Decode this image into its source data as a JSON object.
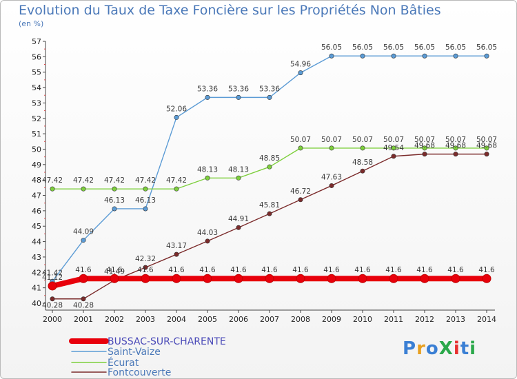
{
  "chart_data": {
    "type": "line",
    "title": "Evolution du Taux de Taxe Foncière sur les Propriétés Non Bâties",
    "ylabel": "(en %)",
    "xlabel": "",
    "x": [
      "2000",
      "2001",
      "2002",
      "2003",
      "2004",
      "2005",
      "2006",
      "2007",
      "2008",
      "2009",
      "2010",
      "2011",
      "2012",
      "2013",
      "2014"
    ],
    "ylim": [
      40,
      57
    ],
    "yticks": [
      40,
      41,
      42,
      43,
      44,
      45,
      46,
      47,
      48,
      49,
      50,
      51,
      52,
      53,
      54,
      55,
      56,
      57
    ],
    "grid": false,
    "series": [
      {
        "name": "BUSSAC-SUR-CHARENTE",
        "color": "#e8000b",
        "values": [
          41.12,
          41.6,
          41.6,
          41.6,
          41.6,
          41.6,
          41.6,
          41.6,
          41.6,
          41.6,
          41.6,
          41.6,
          41.6,
          41.6,
          41.6
        ],
        "labels": [
          "41.12",
          "41.6",
          "41.6",
          "41.6",
          "41.6",
          "41.6",
          "41.6",
          "41.6",
          "41.6",
          "41.6",
          "41.6",
          "41.6",
          "41.6",
          "41.6",
          "41.6"
        ]
      },
      {
        "name": "Saint-Vaize",
        "color": "#5b9bd5",
        "values": [
          41.42,
          44.09,
          46.13,
          46.13,
          52.06,
          53.36,
          53.36,
          53.36,
          54.96,
          56.05,
          56.05,
          56.05,
          56.05,
          56.05,
          56.05
        ],
        "labels": [
          "41.42",
          "44.09",
          "46.13",
          "46.13",
          "52.06",
          "53.36",
          "53.36",
          "53.36",
          "54.96",
          "56.05",
          "56.05",
          "56.05",
          "56.05",
          "56.05",
          "56.05"
        ]
      },
      {
        "name": "Écurat",
        "color": "#7dcf3c",
        "values": [
          47.42,
          47.42,
          47.42,
          47.42,
          47.42,
          48.13,
          48.13,
          48.85,
          50.07,
          50.07,
          50.07,
          50.07,
          50.07,
          50.07,
          50.07
        ],
        "labels": [
          "47.42",
          "47.42",
          "47.42",
          "47.42",
          "47.42",
          "48.13",
          "48.13",
          "48.85",
          "50.07",
          "50.07",
          "50.07",
          "50.07",
          "50.07",
          "50.07",
          "50.07"
        ]
      },
      {
        "name": "Fontcouverte",
        "color": "#7b2b2b",
        "values": [
          40.28,
          40.28,
          41.49,
          42.32,
          43.17,
          44.03,
          44.91,
          45.81,
          46.72,
          47.63,
          48.58,
          49.54,
          49.68,
          49.68,
          49.68
        ],
        "labels": [
          "40.28",
          "40.28",
          "41.49",
          "42.32",
          "43.17",
          "44.03",
          "44.91",
          "45.81",
          "46.72",
          "47.63",
          "48.58",
          "49.54",
          "49.68",
          "49.68",
          "49.68"
        ]
      }
    ]
  },
  "logo": {
    "text": "ProXiti"
  }
}
